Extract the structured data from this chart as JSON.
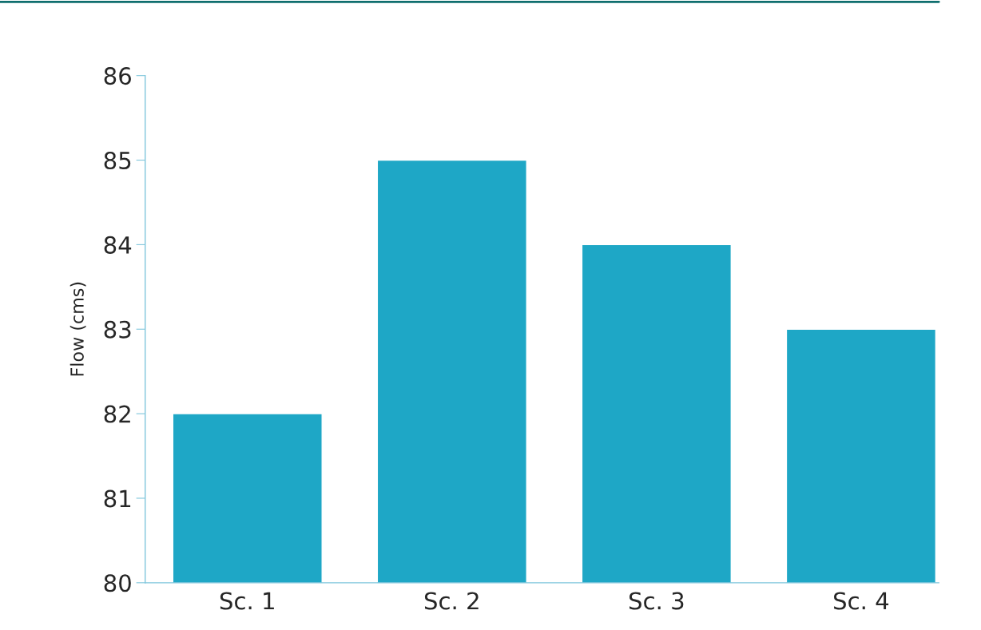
{
  "chart_data": {
    "type": "bar",
    "ylabel": "Flow (cms)",
    "categories": [
      "Sc. 1",
      "Sc. 2",
      "Sc. 3",
      "Sc. 4"
    ],
    "values": [
      82,
      85,
      84,
      83
    ],
    "color": "#1ea7c6",
    "ylim": [
      80,
      86
    ],
    "yticks": [
      80,
      81,
      82,
      83,
      84,
      85,
      86
    ],
    "grid": false,
    "legend": false
  }
}
